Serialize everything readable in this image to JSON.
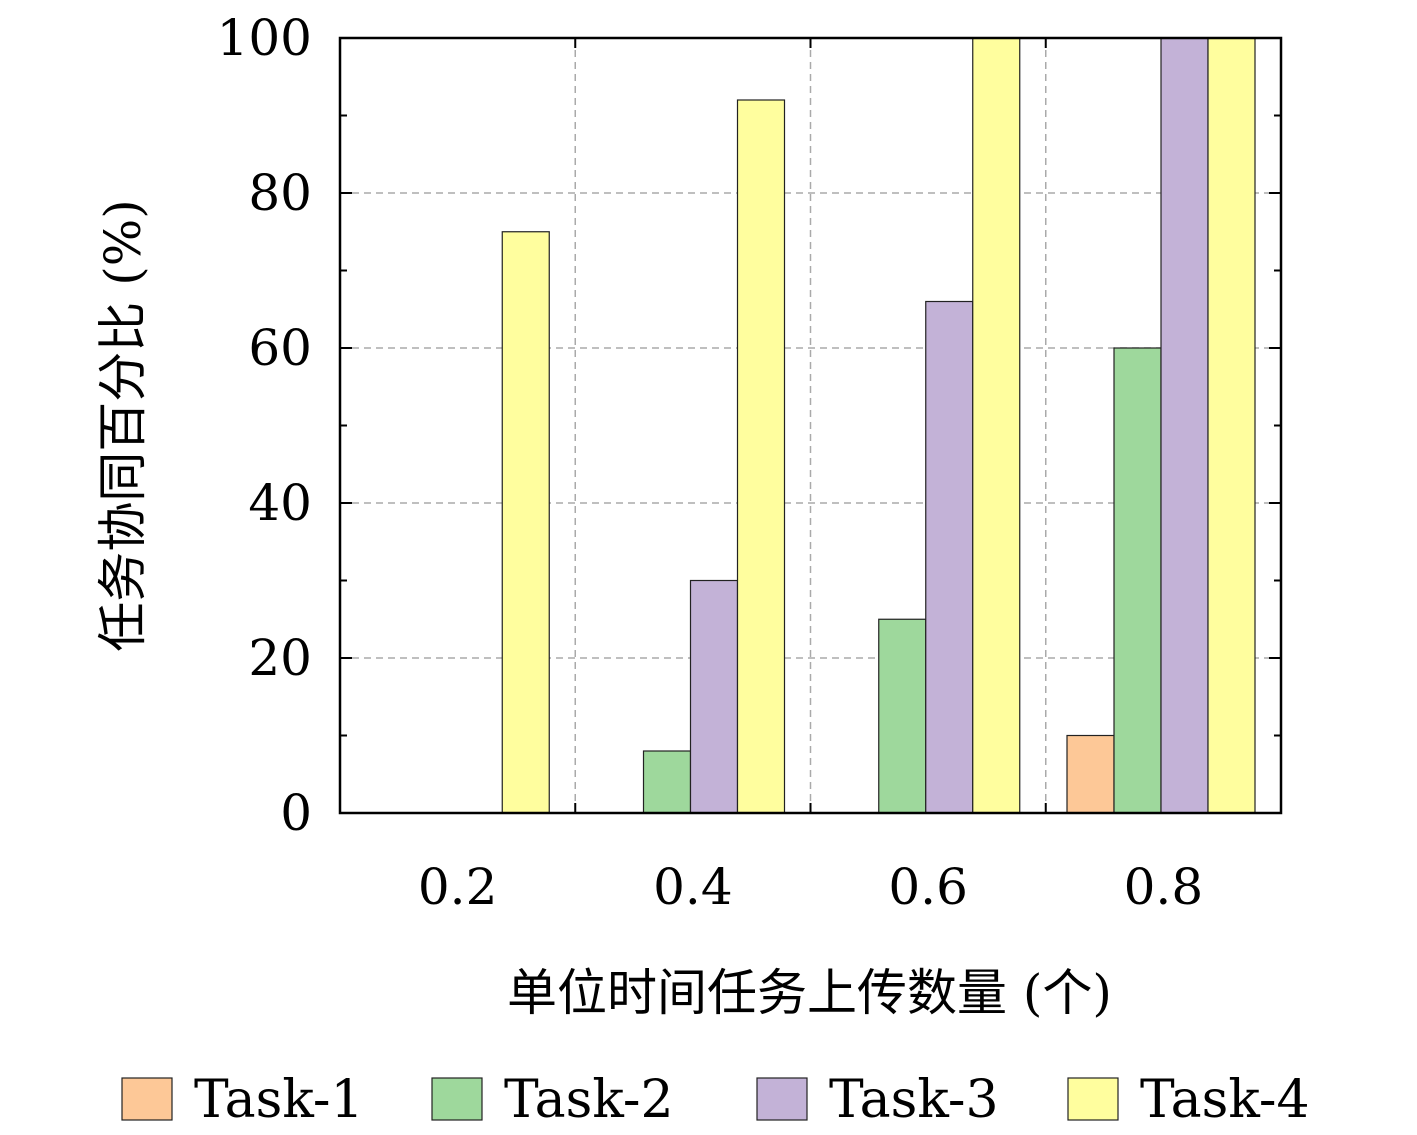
{
  "chart_data": {
    "type": "bar",
    "categories": [
      "0.2",
      "0.4",
      "0.6",
      "0.8"
    ],
    "series": [
      {
        "name": "Task-1",
        "color": "#FDC897",
        "values": [
          0,
          0,
          0,
          10
        ]
      },
      {
        "name": "Task-2",
        "color": "#9ED89C",
        "values": [
          0,
          8,
          25,
          60
        ]
      },
      {
        "name": "Task-3",
        "color": "#C3B2D7",
        "values": [
          0,
          30,
          66,
          100
        ]
      },
      {
        "name": "Task-4",
        "color": "#FFFE9E",
        "values": [
          75,
          92,
          100,
          100
        ]
      }
    ],
    "xlabel": "单位时间任务上传数量 (个)",
    "ylabel": "任务协同百分比 (%)",
    "ylim": [
      0,
      100
    ],
    "yticks": [
      "0",
      "20",
      "40",
      "60",
      "80",
      "100"
    ],
    "grid": true,
    "legend_position": "bottom"
  }
}
